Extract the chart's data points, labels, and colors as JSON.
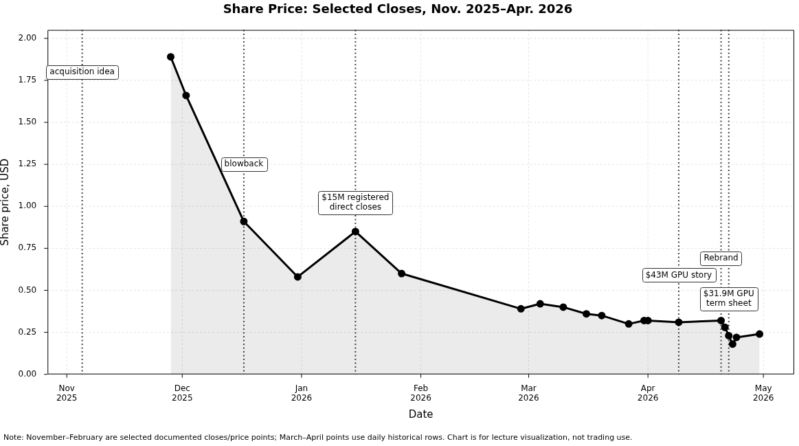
{
  "chart_data": {
    "type": "area",
    "title": "Share Price: Selected Closes, Nov. 2025–Apr. 2026",
    "xlabel": "Date",
    "ylabel": "Share price, USD",
    "x": [
      "2025-11-28",
      "2025-12-02",
      "2025-12-17",
      "2025-12-31",
      "2026-01-15",
      "2026-01-27",
      "2026-02-27",
      "2026-03-04",
      "2026-03-10",
      "2026-03-16",
      "2026-03-20",
      "2026-03-27",
      "2026-03-31",
      "2026-04-01",
      "2026-04-09",
      "2026-04-20",
      "2026-04-21",
      "2026-04-22",
      "2026-04-23",
      "2026-04-24",
      "2026-04-30"
    ],
    "values": [
      1.89,
      1.66,
      0.91,
      0.58,
      0.85,
      0.6,
      0.39,
      0.42,
      0.4,
      0.36,
      0.35,
      0.3,
      0.32,
      0.32,
      0.31,
      0.32,
      0.28,
      0.23,
      0.18,
      0.22,
      0.24
    ],
    "color": "#000000",
    "marker": "circle",
    "line_style": "solid",
    "xlim": [
      "2025-10-27",
      "2026-05-09"
    ],
    "xticks": [
      {
        "value": "2025-11-01",
        "label": "Nov 2025"
      },
      {
        "value": "2025-12-01",
        "label": "Dec 2025"
      },
      {
        "value": "2026-01-01",
        "label": "Jan 2026"
      },
      {
        "value": "2026-02-01",
        "label": "Feb 2026"
      },
      {
        "value": "2026-03-01",
        "label": "Mar 2026"
      },
      {
        "value": "2026-04-01",
        "label": "Apr 2026"
      },
      {
        "value": "2026-05-01",
        "label": "May 2026"
      }
    ],
    "ylim": [
      0,
      2.05
    ],
    "yticks": [
      {
        "value": 0,
        "label": "0.00"
      },
      {
        "value": 0.25,
        "label": "0.25"
      },
      {
        "value": 0.5,
        "label": "0.50"
      },
      {
        "value": 0.75,
        "label": "0.75"
      },
      {
        "value": 1,
        "label": "1.00"
      },
      {
        "value": 1.25,
        "label": "1.25"
      },
      {
        "value": 1.5,
        "label": "1.50"
      },
      {
        "value": 1.75,
        "label": "1.75"
      },
      {
        "value": 2,
        "label": "2.00"
      }
    ],
    "grid": true,
    "ref_lines": [
      {
        "axis": "x",
        "value": "2025-11-05",
        "color": "#444444",
        "line_style": "dotted"
      },
      {
        "axis": "x",
        "value": "2025-12-17",
        "color": "#444444",
        "line_style": "dotted"
      },
      {
        "axis": "x",
        "value": "2026-01-15",
        "color": "#444444",
        "line_style": "dotted"
      },
      {
        "axis": "x",
        "value": "2026-04-09",
        "color": "#444444",
        "line_style": "dotted"
      },
      {
        "axis": "x",
        "value": "2026-04-20",
        "color": "#444444",
        "line_style": "dotted"
      },
      {
        "axis": "x",
        "value": "2026-04-22",
        "color": "#444444",
        "line_style": "dotted"
      }
    ],
    "annotations": [
      {
        "text": "acquisition idea",
        "x": "2025-11-05",
        "y": 1.8
      },
      {
        "text": "blowback",
        "x": "2025-12-17",
        "y": 1.25
      },
      {
        "text": "$15M registered direct closes",
        "x": "2026-01-15",
        "y": 1.02
      },
      {
        "text": "$43M GPU story",
        "x": "2026-04-09",
        "y": 0.59
      },
      {
        "text": "Rebrand",
        "x": "2026-04-20",
        "y": 0.69
      },
      {
        "text": "$31.9M GPU term sheet",
        "x": "2026-04-22",
        "y": 0.45
      },
      "Note: November–February are selected documented closes/price points; March–April points use daily historical rows. Chart is for lecture visualization, not trading use."
    ]
  }
}
